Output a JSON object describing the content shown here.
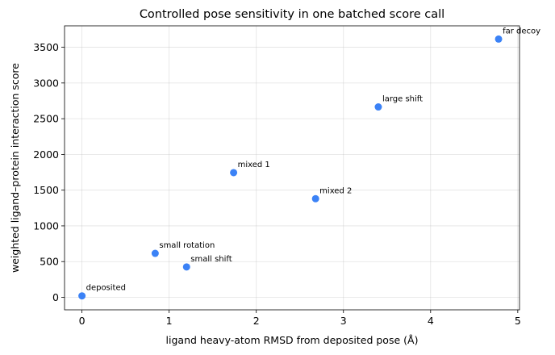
{
  "chart_data": {
    "type": "scatter",
    "title": "Controlled pose sensitivity in one batched score call",
    "xlabel": "ligand heavy-atom RMSD from deposited pose (Å)",
    "ylabel": "weighted ligand–protein interaction score",
    "xlim": [
      -0.2,
      5.02
    ],
    "ylim": [
      -175,
      3800
    ],
    "xticks": [
      0,
      1,
      2,
      3,
      4,
      5
    ],
    "yticks": [
      0,
      500,
      1000,
      1500,
      2000,
      2500,
      3000,
      3500
    ],
    "grid": true,
    "marker_color": "#3b82f6",
    "points": [
      {
        "label": "deposited",
        "x": 0.0,
        "y": 20
      },
      {
        "label": "small rotation",
        "x": 0.84,
        "y": 615
      },
      {
        "label": "small shift",
        "x": 1.2,
        "y": 425
      },
      {
        "label": "mixed 1",
        "x": 1.74,
        "y": 1745
      },
      {
        "label": "mixed 2",
        "x": 2.68,
        "y": 1380
      },
      {
        "label": "large shift",
        "x": 3.4,
        "y": 2665
      },
      {
        "label": "far decoy",
        "x": 4.78,
        "y": 3615
      }
    ]
  }
}
